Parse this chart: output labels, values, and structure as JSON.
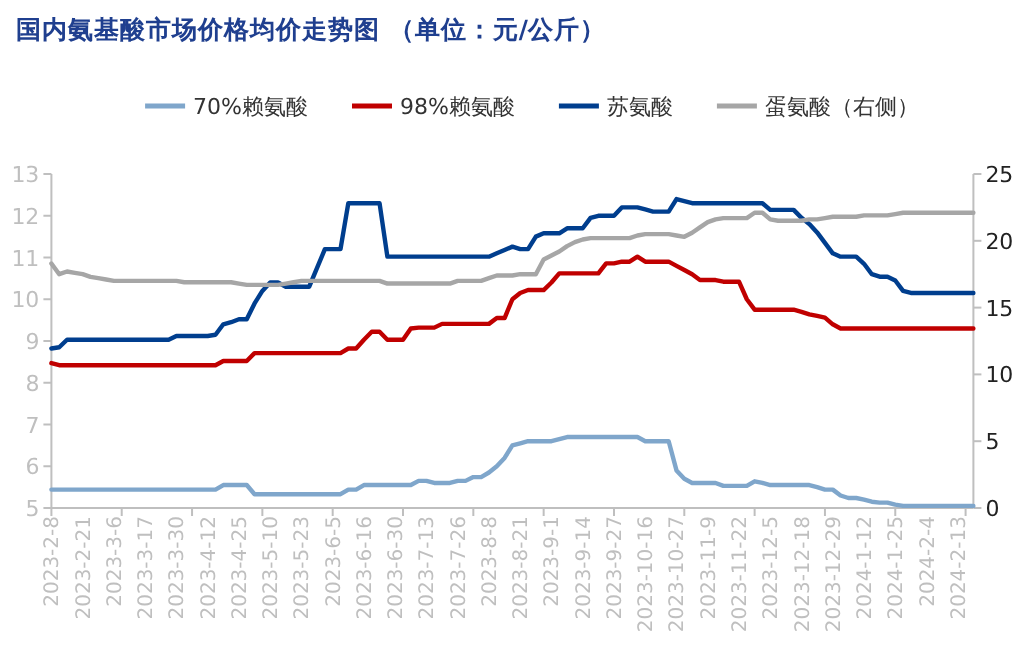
{
  "chart_data": {
    "type": "line",
    "title": "国内氨基酸市场价格均价走势图 （单位：元/公斤）",
    "categories": [
      "2023-2-8",
      null,
      null,
      null,
      "2023-2-21",
      null,
      null,
      null,
      "2023-3-6",
      null,
      null,
      null,
      "2023-3-17",
      null,
      null,
      null,
      "2023-3-30",
      null,
      null,
      null,
      "2023-4-12",
      null,
      null,
      null,
      "2023-4-25",
      null,
      null,
      null,
      "2023-5-10",
      null,
      null,
      null,
      "2023-5-23",
      null,
      null,
      null,
      "2023-6-5",
      null,
      null,
      null,
      "2023-6-16",
      null,
      null,
      null,
      "2023-6-30",
      null,
      null,
      null,
      "2023-7-13",
      null,
      null,
      null,
      "2023-7-26",
      null,
      null,
      null,
      "2023-8-8",
      null,
      null,
      null,
      "2023-8-21",
      null,
      null,
      null,
      "2023-9-1",
      null,
      null,
      null,
      "2023-9-14",
      null,
      null,
      null,
      "2023-9-27",
      null,
      null,
      null,
      "2023-10-16",
      null,
      null,
      null,
      "2023-10-27",
      null,
      null,
      null,
      "2023-11-9",
      null,
      null,
      null,
      "2023-11-22",
      null,
      null,
      null,
      "2023-12-5",
      null,
      null,
      null,
      "2023-12-18",
      null,
      null,
      null,
      "2023-12-29",
      null,
      null,
      null,
      "2024-1-12",
      null,
      null,
      null,
      "2024-1-25",
      null,
      null,
      null,
      "2024-2-4",
      null,
      null,
      null,
      "2024-2-13",
      null,
      null
    ],
    "series": [
      {
        "name": "70%赖氨酸",
        "color": "#7FA6CB",
        "values": [
          5.44,
          5.44,
          5.44,
          5.44,
          5.44,
          5.44,
          5.44,
          5.44,
          5.44,
          5.44,
          5.44,
          5.44,
          5.44,
          5.44,
          5.44,
          5.44,
          5.44,
          5.44,
          5.44,
          5.44,
          5.44,
          5.44,
          5.55,
          5.55,
          5.55,
          5.55,
          5.33,
          5.33,
          5.33,
          5.33,
          5.33,
          5.33,
          5.33,
          5.33,
          5.33,
          5.33,
          5.33,
          5.33,
          5.44,
          5.44,
          5.55,
          5.55,
          5.55,
          5.55,
          5.55,
          5.55,
          5.55,
          5.65,
          5.65,
          5.6,
          5.6,
          5.6,
          5.65,
          5.65,
          5.74,
          5.74,
          5.85,
          6.0,
          6.2,
          6.5,
          6.55,
          6.6,
          6.6,
          6.6,
          6.6,
          6.65,
          6.7,
          6.7,
          6.7,
          6.7,
          6.7,
          6.7,
          6.7,
          6.7,
          6.7,
          6.7,
          6.6,
          6.6,
          6.6,
          6.6,
          5.9,
          5.7,
          5.6,
          5.6,
          5.6,
          5.6,
          5.53,
          5.53,
          5.53,
          5.53,
          5.64,
          5.6,
          5.55,
          5.55,
          5.55,
          5.55,
          5.55,
          5.55,
          5.5,
          5.44,
          5.44,
          5.3,
          5.24,
          5.24,
          5.2,
          5.15,
          5.13,
          5.13,
          5.08,
          5.05,
          5.05,
          5.05,
          5.05,
          5.05,
          5.05,
          5.05,
          5.05,
          5.05,
          5.05
        ]
      },
      {
        "name": "98%赖氨酸",
        "color": "#C00000",
        "values": [
          8.47,
          8.42,
          8.42,
          8.42,
          8.42,
          8.42,
          8.42,
          8.42,
          8.42,
          8.42,
          8.42,
          8.42,
          8.42,
          8.42,
          8.42,
          8.42,
          8.42,
          8.42,
          8.42,
          8.42,
          8.42,
          8.42,
          8.52,
          8.52,
          8.52,
          8.52,
          8.71,
          8.71,
          8.71,
          8.71,
          8.71,
          8.71,
          8.71,
          8.71,
          8.71,
          8.71,
          8.71,
          8.71,
          8.82,
          8.82,
          9.03,
          9.22,
          9.22,
          9.03,
          9.03,
          9.03,
          9.3,
          9.32,
          9.32,
          9.32,
          9.41,
          9.41,
          9.41,
          9.41,
          9.41,
          9.41,
          9.41,
          9.55,
          9.55,
          10.0,
          10.15,
          10.22,
          10.22,
          10.22,
          10.4,
          10.62,
          10.62,
          10.62,
          10.62,
          10.62,
          10.62,
          10.86,
          10.86,
          10.9,
          10.9,
          11.02,
          10.9,
          10.9,
          10.9,
          10.9,
          10.8,
          10.7,
          10.6,
          10.46,
          10.46,
          10.46,
          10.42,
          10.42,
          10.42,
          10.0,
          9.75,
          9.75,
          9.75,
          9.75,
          9.75,
          9.75,
          9.7,
          9.64,
          9.6,
          9.56,
          9.4,
          9.3,
          9.3,
          9.3,
          9.3,
          9.3,
          9.3,
          9.3,
          9.3,
          9.3,
          9.3,
          9.3,
          9.3,
          9.3,
          9.3,
          9.3,
          9.3,
          9.3,
          9.3
        ]
      },
      {
        "name": "苏氨酸",
        "color": "#003E8E",
        "values": [
          8.82,
          8.85,
          9.03,
          9.03,
          9.03,
          9.03,
          9.03,
          9.03,
          9.03,
          9.03,
          9.03,
          9.03,
          9.03,
          9.03,
          9.03,
          9.03,
          9.12,
          9.12,
          9.12,
          9.12,
          9.12,
          9.15,
          9.4,
          9.45,
          9.52,
          9.52,
          9.9,
          10.2,
          10.4,
          10.4,
          10.3,
          10.3,
          10.3,
          10.3,
          10.75,
          11.2,
          11.2,
          11.2,
          12.3,
          12.3,
          12.3,
          12.3,
          12.3,
          11.02,
          11.02,
          11.02,
          11.02,
          11.02,
          11.02,
          11.02,
          11.02,
          11.02,
          11.02,
          11.02,
          11.02,
          11.02,
          11.02,
          11.1,
          11.18,
          11.26,
          11.2,
          11.2,
          11.5,
          11.58,
          11.58,
          11.58,
          11.7,
          11.7,
          11.7,
          11.95,
          12.0,
          12.0,
          12.0,
          12.2,
          12.2,
          12.2,
          12.15,
          12.1,
          12.1,
          12.1,
          12.4,
          12.35,
          12.3,
          12.3,
          12.3,
          12.3,
          12.3,
          12.3,
          12.3,
          12.3,
          12.3,
          12.3,
          12.14,
          12.14,
          12.14,
          12.14,
          11.95,
          11.8,
          11.6,
          11.35,
          11.1,
          11.02,
          11.02,
          11.02,
          10.85,
          10.6,
          10.54,
          10.54,
          10.45,
          10.2,
          10.15,
          10.15,
          10.15,
          10.15,
          10.15,
          10.15,
          10.15,
          10.15,
          10.15
        ]
      },
      {
        "name": "蛋氨酸（右侧）",
        "color": "#A6A6A6",
        "axis": "y2",
        "values": [
          18.3,
          17.5,
          17.7,
          17.6,
          17.5,
          17.3,
          17.2,
          17.1,
          17.0,
          17.0,
          17.0,
          17.0,
          17.0,
          17.0,
          17.0,
          17.0,
          17.0,
          16.9,
          16.9,
          16.9,
          16.9,
          16.9,
          16.9,
          16.9,
          16.8,
          16.7,
          16.7,
          16.7,
          16.7,
          16.7,
          16.8,
          16.9,
          17.0,
          17.0,
          17.0,
          17.0,
          17.0,
          17.0,
          17.0,
          17.0,
          17.0,
          17.0,
          17.0,
          16.8,
          16.8,
          16.8,
          16.8,
          16.8,
          16.8,
          16.8,
          16.8,
          16.8,
          17.0,
          17.0,
          17.0,
          17.0,
          17.2,
          17.4,
          17.4,
          17.4,
          17.5,
          17.5,
          17.5,
          18.6,
          18.9,
          19.2,
          19.6,
          19.9,
          20.1,
          20.2,
          20.2,
          20.2,
          20.2,
          20.2,
          20.2,
          20.4,
          20.5,
          20.5,
          20.5,
          20.5,
          20.4,
          20.3,
          20.6,
          21.0,
          21.4,
          21.6,
          21.7,
          21.7,
          21.7,
          21.7,
          22.1,
          22.1,
          21.6,
          21.5,
          21.5,
          21.5,
          21.5,
          21.6,
          21.6,
          21.7,
          21.8,
          21.8,
          21.8,
          21.8,
          21.9,
          21.9,
          21.9,
          21.9,
          22.0,
          22.1,
          22.1,
          22.1,
          22.1,
          22.1,
          22.1,
          22.1,
          22.1,
          22.1,
          22.1
        ]
      }
    ],
    "ylim": [
      5,
      13
    ],
    "yticks": [
      5,
      6,
      7,
      8,
      9,
      10,
      11,
      12,
      13
    ],
    "y2lim": [
      0,
      25
    ],
    "y2ticks": [
      0,
      5,
      10,
      15,
      20,
      25
    ],
    "legend": "top",
    "grid": false
  }
}
